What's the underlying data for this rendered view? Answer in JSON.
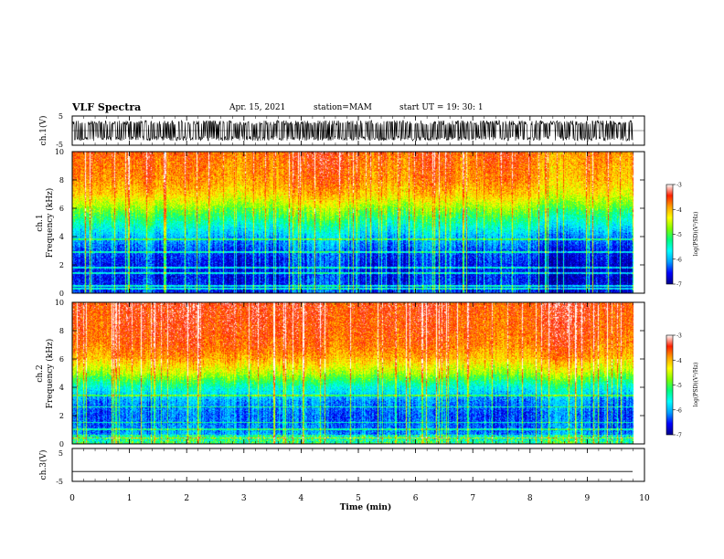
{
  "header": {
    "title": "VLF Spectra",
    "date": "Apr. 15, 2021",
    "station": "station=MAM",
    "start": "start UT =  19: 30: 1"
  },
  "colors": {
    "scale": [
      "#00008b",
      "#0000ff",
      "#00a0ff",
      "#00ffff",
      "#00ff80",
      "#80ff00",
      "#ffff00",
      "#ffa000",
      "#ff2000",
      "#ffffff"
    ],
    "trace": "#000000"
  },
  "chart_data": [
    {
      "type": "line",
      "panel": "ch1-waveform",
      "ylabel": "ch.1(V)",
      "ylim": [
        -5,
        5
      ],
      "yticks": [
        "5",
        "-5"
      ],
      "xlim": [
        0,
        10
      ],
      "description_values": {
        "envelope_min": -3.5,
        "envelope_max": 3.5
      }
    },
    {
      "type": "heatmap",
      "panel": "ch1-spectrogram",
      "ylabel": [
        "ch.1",
        "Frequency (kHz)"
      ],
      "ylim": [
        0,
        10
      ],
      "yticks": [
        "0",
        "2",
        "4",
        "6",
        "8",
        "10"
      ],
      "xlim": [
        0,
        10
      ],
      "colorbar": {
        "label": "log(PSD)(V²/Hz)",
        "ticks": [
          "-3",
          "-4",
          "-5",
          "-6",
          "-7"
        ],
        "range": [
          -7,
          -3
        ]
      },
      "profile": {
        "freq_kHz": [
          0,
          1,
          2,
          3,
          4,
          5,
          6,
          7,
          8,
          10
        ],
        "log_psd": [
          -6.4,
          -6.5,
          -6.5,
          -6.3,
          -5.9,
          -5.3,
          -4.7,
          -4.1,
          -3.8,
          -3.6
        ]
      }
    },
    {
      "type": "heatmap",
      "panel": "ch2-spectrogram",
      "ylabel": [
        "ch.2",
        "Frequency (kHz)"
      ],
      "ylim": [
        0,
        10
      ],
      "yticks": [
        "0",
        "2",
        "4",
        "6",
        "8",
        "10"
      ],
      "xlim": [
        0,
        10
      ],
      "colorbar": {
        "label": "log(PSD)(V²/Hz)",
        "ticks": [
          "-3",
          "-4",
          "-5",
          "-6",
          "-7"
        ],
        "range": [
          -7,
          -3
        ]
      },
      "profile": {
        "freq_kHz": [
          0,
          1,
          2,
          3,
          4,
          5,
          6,
          7,
          8,
          10
        ],
        "log_psd": [
          -5.8,
          -6.2,
          -6.3,
          -6.1,
          -5.5,
          -4.6,
          -4.0,
          -3.7,
          -3.6,
          -3.5
        ]
      }
    },
    {
      "type": "line",
      "panel": "ch3-waveform",
      "ylabel": "ch.3(V)",
      "ylim": [
        -5,
        5
      ],
      "yticks": [
        "5",
        "-5"
      ],
      "xlim": [
        0,
        10
      ],
      "constant_value": -2.0
    }
  ],
  "xaxis": {
    "label": "Time (min)",
    "ticks": [
      "0",
      "1",
      "2",
      "3",
      "4",
      "5",
      "6",
      "7",
      "8",
      "9",
      "10"
    ]
  }
}
